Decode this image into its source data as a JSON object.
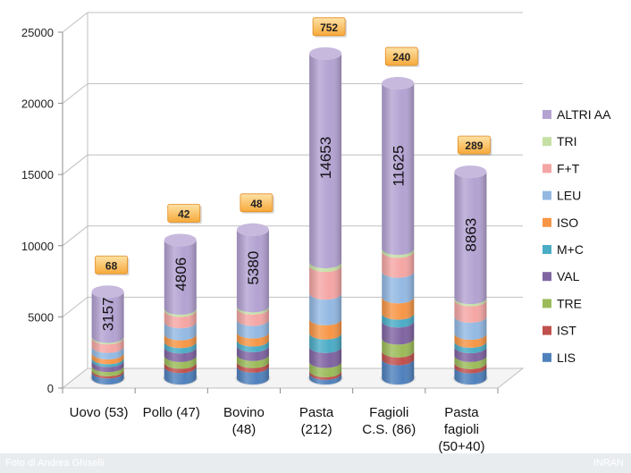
{
  "chart_data": {
    "type": "bar",
    "stacked": true,
    "ylim": [
      0,
      25000
    ],
    "yticks": [
      0,
      5000,
      10000,
      15000,
      20000,
      25000
    ],
    "grid": true,
    "legend_position": "right",
    "categories": [
      {
        "lines": [
          "Uovo (53)"
        ]
      },
      {
        "lines": [
          "Pollo (47)"
        ]
      },
      {
        "lines": [
          "Bovino",
          "(48)"
        ]
      },
      {
        "lines": [
          "Pasta",
          "(212)"
        ]
      },
      {
        "lines": [
          "Fagioli",
          "C.S. (86)"
        ]
      },
      {
        "lines": [
          "Pasta",
          "fagioli",
          "(50+40)"
        ]
      }
    ],
    "series": [
      {
        "name": "LIS",
        "color": "#4f81bd",
        "values": [
          420,
          800,
          830,
          330,
          1350,
          780
        ]
      },
      {
        "name": "IST",
        "color": "#c0504d",
        "values": [
          150,
          300,
          320,
          180,
          550,
          300
        ]
      },
      {
        "name": "TRE",
        "color": "#9bbb59",
        "values": [
          300,
          480,
          500,
          650,
          900,
          500
        ]
      },
      {
        "name": "VAL",
        "color": "#8064a2",
        "values": [
          350,
          600,
          620,
          1050,
          1200,
          620
        ]
      },
      {
        "name": "M+C",
        "color": "#4bacc6",
        "values": [
          200,
          380,
          400,
          950,
          550,
          380
        ]
      },
      {
        "name": "ISO",
        "color": "#f79646",
        "values": [
          340,
          540,
          560,
          1000,
          1150,
          560
        ]
      },
      {
        "name": "LEU",
        "color": "#93b9e3",
        "values": [
          460,
          850,
          880,
          1800,
          1800,
          1200
        ]
      },
      {
        "name": "F+T",
        "color": "#f4a6a4",
        "values": [
          600,
          800,
          800,
          1950,
          1400,
          1150
        ]
      },
      {
        "name": "TRI",
        "color": "#c5e0a5",
        "values": [
          100,
          150,
          150,
          250,
          200,
          150
        ]
      },
      {
        "name": "ALTRI AA",
        "color": "#b3a2d2",
        "values": [
          3157,
          4806,
          5380,
          14653,
          11625,
          8863
        ]
      }
    ],
    "top_series_labels": [
      "3157",
      "4806",
      "5380",
      "14653",
      "11625",
      "8863"
    ],
    "callouts": [
      "68",
      "42",
      "48",
      "752",
      "240",
      "289"
    ]
  },
  "footer": {
    "credit": "Foto di Andrea Ghiselli",
    "watermark": "INRAN"
  }
}
